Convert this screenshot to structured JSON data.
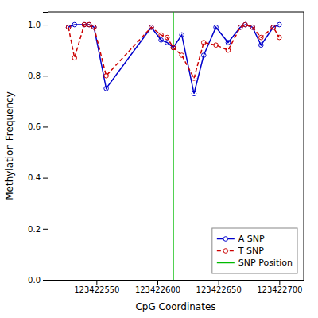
{
  "chart_data": {
    "type": "line",
    "xlabel": "CpG Coordinates",
    "ylabel": "Methylation Frequency",
    "x": [
      123422527,
      123422532,
      123422540,
      123422544,
      123422548,
      123422558,
      123422595,
      123422603,
      123422608,
      123422613,
      123422620,
      123422630,
      123422638,
      123422648,
      123422658,
      123422668,
      123422672,
      123422678,
      123422685,
      123422695,
      123422700
    ],
    "series": [
      {
        "name": "A SNP",
        "color": "#0000cc",
        "line_style": "solid",
        "marker": "circle",
        "values": [
          0.99,
          1.0,
          1.0,
          1.0,
          0.99,
          0.75,
          0.99,
          0.94,
          0.93,
          0.91,
          0.96,
          0.73,
          0.88,
          0.99,
          0.93,
          0.99,
          1.0,
          0.99,
          0.92,
          0.99,
          1.0
        ]
      },
      {
        "name": "T SNP",
        "color": "#cc0000",
        "line_style": "dashed",
        "marker": "circle",
        "values": [
          0.99,
          0.87,
          1.0,
          1.0,
          0.99,
          0.8,
          0.99,
          0.96,
          0.95,
          0.91,
          0.88,
          0.79,
          0.93,
          0.92,
          0.9,
          0.99,
          1.0,
          0.99,
          0.95,
          0.99,
          0.95
        ]
      }
    ],
    "vlines": [
      {
        "name": "SNP Position",
        "value": 123422613,
        "color": "#00bb00"
      }
    ],
    "xlim": [
      123422510,
      123422720
    ],
    "ylim": [
      0.0,
      1.05
    ],
    "xticks": [
      123422550,
      123422600,
      123422650,
      123422700
    ],
    "yticks": [
      {
        "value": 0.0,
        "label": "0.0"
      },
      0.2,
      0.4,
      0.6,
      0.8,
      {
        "value": 1.0,
        "label": "1.0"
      }
    ],
    "grid": false,
    "legend": "lower right"
  }
}
